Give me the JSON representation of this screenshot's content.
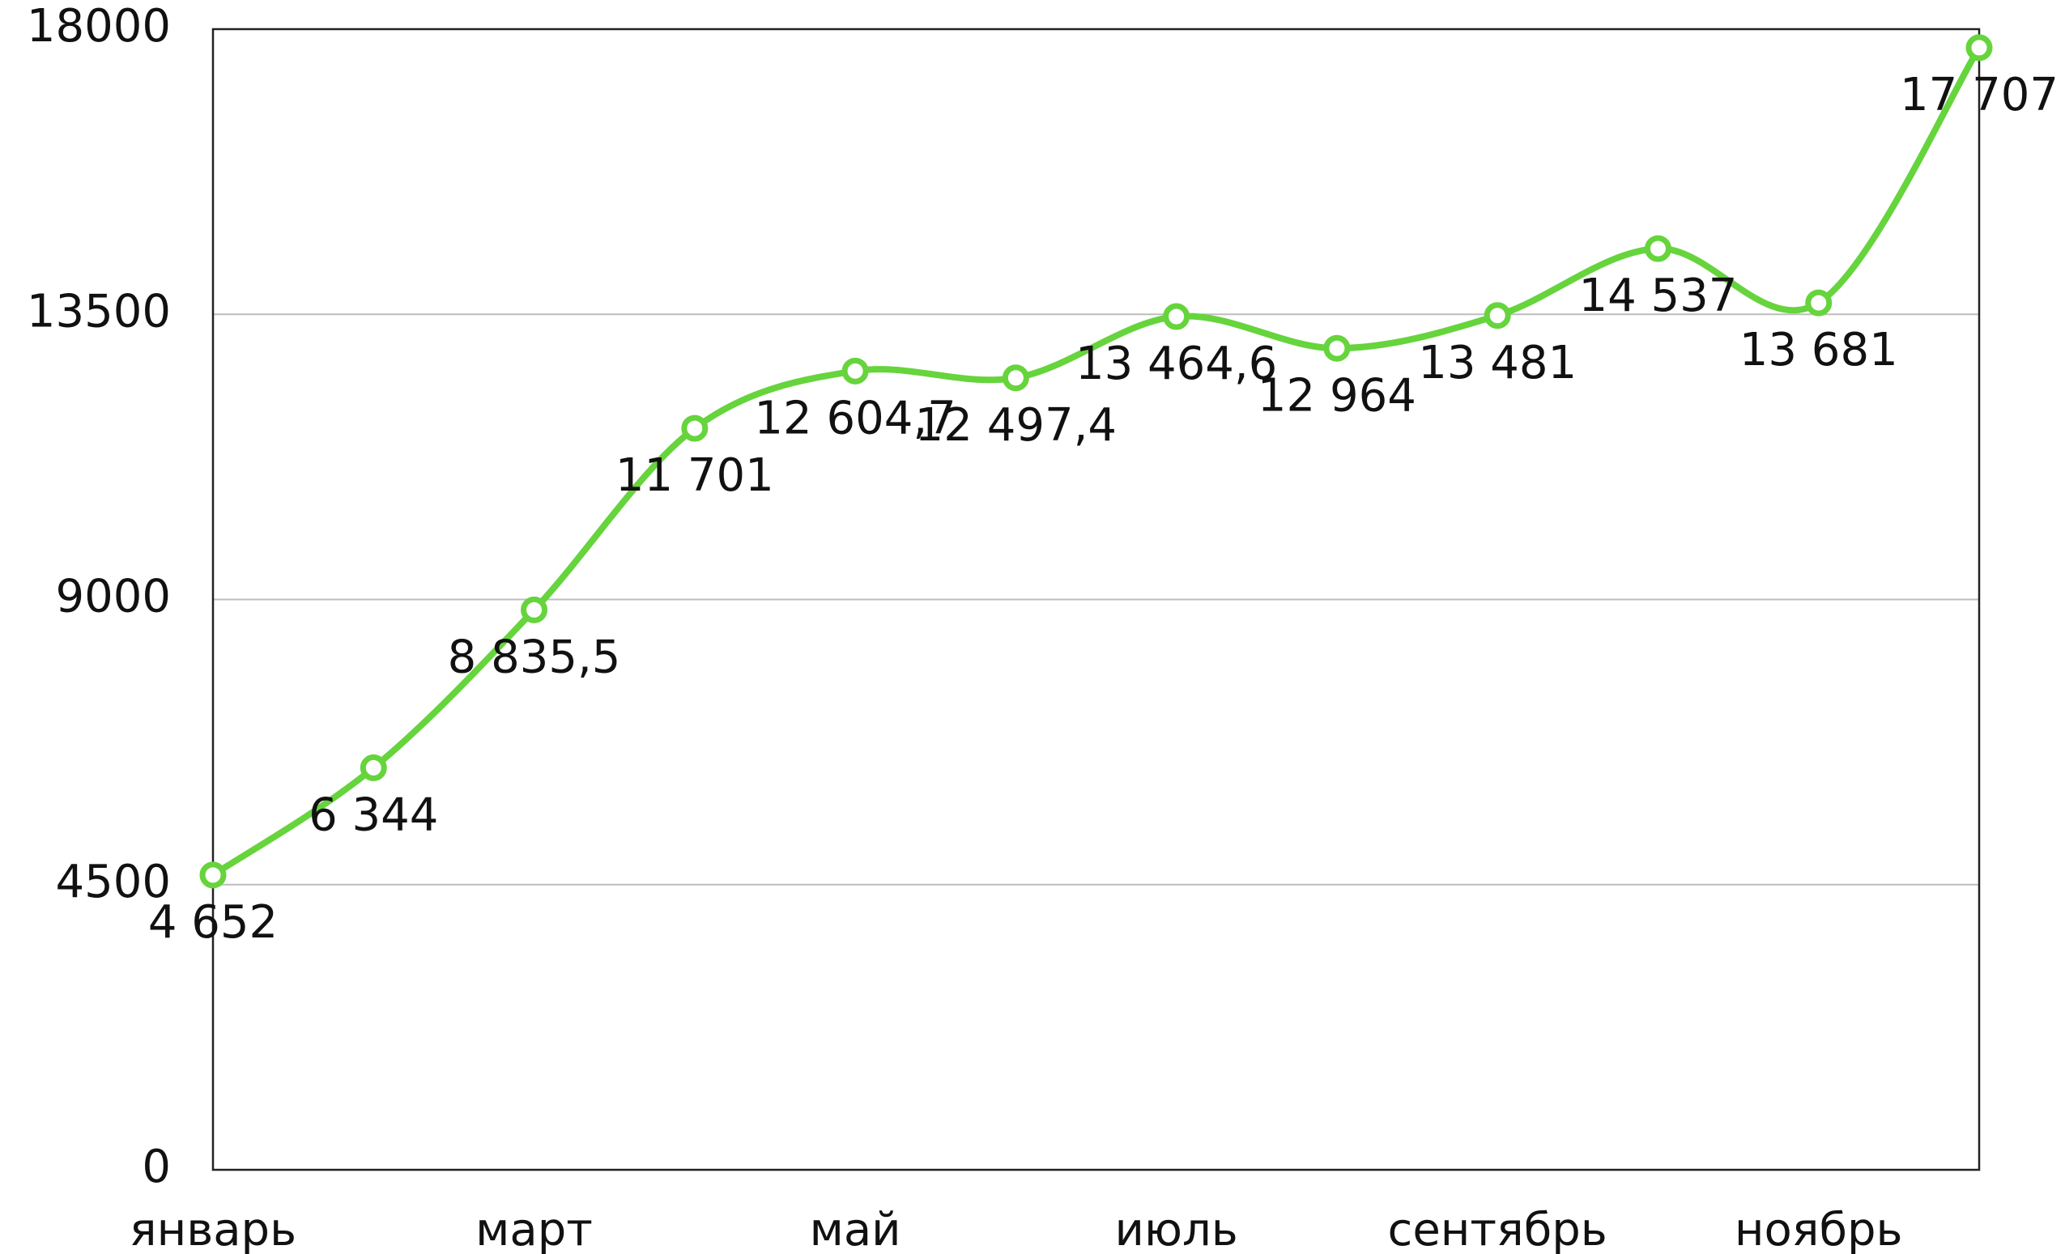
{
  "chart_data": {
    "type": "line",
    "categories": [
      "январь",
      null,
      "март",
      null,
      "май",
      null,
      "июль",
      null,
      "сентябрь",
      null,
      "ноябрь",
      null
    ],
    "series": [
      {
        "color": "#66d43c",
        "values": [
          4652,
          6344,
          8835.5,
          11701,
          12604.7,
          12497.4,
          13464.6,
          12964,
          13481,
          14537,
          13681,
          17707
        ],
        "value_labels": [
          "4 652",
          "6 344",
          "8 835,5",
          "11 701",
          "12 604,7",
          "12 497,4",
          "13 464,6",
          "12 964",
          "13 481",
          "14 537",
          "13 681",
          "17 707"
        ]
      }
    ],
    "ylim": [
      0,
      18000
    ],
    "yticks": [
      0,
      4500,
      9000,
      13500,
      18000
    ],
    "grid": true
  }
}
